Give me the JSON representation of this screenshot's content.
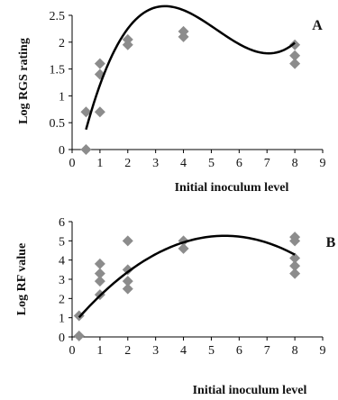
{
  "chart_data": [
    {
      "panel_label": "A",
      "type": "scatter",
      "xlabel": "Initial inoculum level",
      "ylabel": "Log RGS rating",
      "xlim": [
        0,
        9
      ],
      "ylim": [
        0,
        2.5
      ],
      "x_ticks": [
        "0",
        "1",
        "2",
        "3",
        "4",
        "5",
        "6",
        "7",
        "8",
        "9"
      ],
      "y_ticks": [
        "0",
        "0.5",
        "1",
        "1.5",
        "2",
        "2.5"
      ],
      "grid": false,
      "series": [
        {
          "marker": "diamond",
          "color": "#8c8c8c",
          "points": [
            [
              0.5,
              0.0
            ],
            [
              0.5,
              0.7
            ],
            [
              1.0,
              0.7
            ],
            [
              1.0,
              1.4
            ],
            [
              1.0,
              1.6
            ],
            [
              2.0,
              1.95
            ],
            [
              2.0,
              2.05
            ],
            [
              4.0,
              2.1
            ],
            [
              4.0,
              2.2
            ],
            [
              8.0,
              1.6
            ],
            [
              8.0,
              1.75
            ],
            [
              8.0,
              1.95
            ]
          ]
        }
      ],
      "trendline": {
        "type": "polynomial",
        "order": 3,
        "color": "#000000",
        "x_range": [
          0.5,
          8.0
        ],
        "coefficients": [
          -0.7,
          2.4,
          -0.53,
          0.034
        ]
      }
    },
    {
      "panel_label": "B",
      "type": "scatter",
      "xlabel": "Initial inoculum level",
      "ylabel": "Log RF value",
      "xlim": [
        0,
        9
      ],
      "ylim": [
        0,
        6
      ],
      "x_ticks": [
        "0",
        "1",
        "2",
        "3",
        "4",
        "5",
        "6",
        "7",
        "8",
        "9"
      ],
      "y_ticks": [
        "0",
        "1",
        "2",
        "3",
        "4",
        "5",
        "6"
      ],
      "grid": false,
      "series": [
        {
          "marker": "diamond",
          "color": "#8c8c8c",
          "points": [
            [
              0.25,
              1.1
            ],
            [
              0.25,
              0.05
            ],
            [
              1.0,
              2.2
            ],
            [
              1.0,
              2.9
            ],
            [
              1.0,
              3.3
            ],
            [
              1.0,
              3.8
            ],
            [
              2.0,
              2.5
            ],
            [
              2.0,
              2.9
            ],
            [
              2.0,
              3.5
            ],
            [
              2.0,
              5.0
            ],
            [
              4.0,
              4.6
            ],
            [
              4.0,
              5.0
            ],
            [
              8.0,
              3.3
            ],
            [
              8.0,
              3.7
            ],
            [
              8.0,
              4.1
            ],
            [
              8.0,
              5.0
            ],
            [
              8.0,
              5.2
            ]
          ]
        }
      ],
      "trendline": {
        "type": "polynomial",
        "order": 2,
        "color": "#000000",
        "x_range": [
          0.25,
          8.0
        ],
        "coefficients": [
          0.6,
          1.7,
          -0.155
        ]
      }
    }
  ]
}
